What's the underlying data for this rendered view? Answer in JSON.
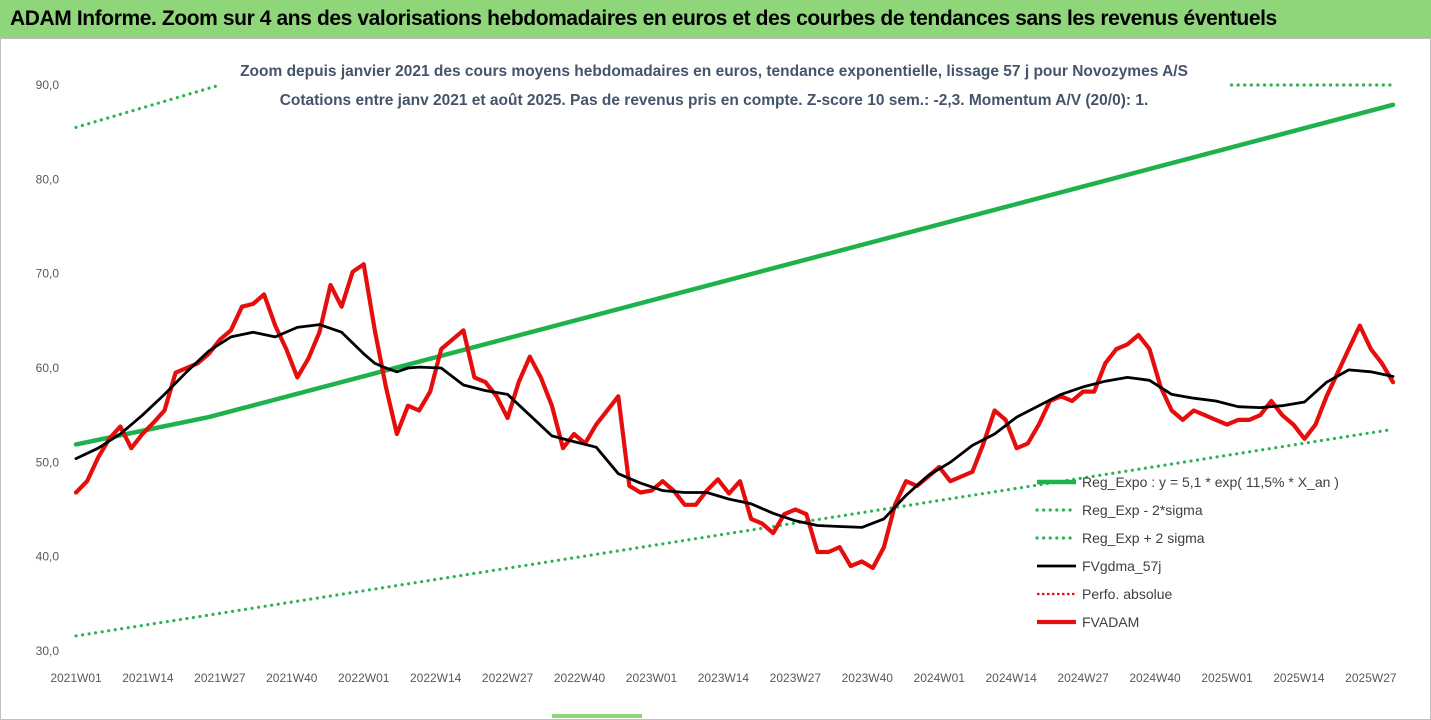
{
  "header": {
    "title": "ADAM Informe. Zoom sur 4 ans des valorisations hebdomadaires en euros et des courbes de tendances sans les revenus éventuels"
  },
  "colors": {
    "header_bg": "#8fd67b",
    "green": "#1fb14c",
    "green_dotted": "#2db356",
    "black": "#000000",
    "red": "#e60d0d",
    "title_text": "#44546a"
  },
  "chart_data": {
    "type": "line",
    "title_lines": [
      "Zoom depuis janvier 2021 des cours moyens hebdomadaires en euros, tendance exponentielle, lissage 57 j pour Novozymes A/S",
      "Cotations entre janv 2021 et août 2025. Pas de revenus pris en compte. Z-score 10 sem.: -2,3. Momentum A/V (20/0): 1."
    ],
    "ylim": [
      30,
      90
    ],
    "ytick_labels": [
      "30,0",
      "40,0",
      "50,0",
      "60,0",
      "70,0",
      "80,0",
      "90,0"
    ],
    "ytick_values": [
      30,
      40,
      50,
      60,
      70,
      80,
      90
    ],
    "xlim": [
      0,
      238
    ],
    "xtick_labels": [
      "2021W01",
      "2021W14",
      "2021W27",
      "2021W40",
      "2022W01",
      "2022W14",
      "2022W27",
      "2022W40",
      "2023W01",
      "2023W14",
      "2023W27",
      "2023W40",
      "2024W01",
      "2024W14",
      "2024W27",
      "2024W40",
      "2025W01",
      "2025W14",
      "2025W27"
    ],
    "xtick_values": [
      0,
      13,
      26,
      39,
      52,
      65,
      78,
      91,
      104,
      117,
      130,
      143,
      156,
      169,
      182,
      195,
      208,
      221,
      234
    ],
    "grid": "none",
    "legend_position": "right",
    "legend": [
      {
        "label": "Reg_Expo : y = 5,1 * exp( 11,5% *  X_an )",
        "style": "solid-green"
      },
      {
        "label": "Reg_Exp - 2*sigma",
        "style": "dotted-green"
      },
      {
        "label": "Reg_Exp + 2 sigma",
        "style": "dotted-green"
      },
      {
        "label": "FVgdma_57j",
        "style": "solid-black"
      },
      {
        "label": "Perfo. absolue",
        "style": "dotted-red"
      },
      {
        "label": "FVADAM",
        "style": "solid-red-thick"
      }
    ],
    "series": [
      {
        "name": "Reg_Expo : y = 5,1 * exp( 11,5% *  X_an )",
        "x": [
          0,
          24,
          238
        ],
        "values": [
          51.9,
          54.8,
          87.9
        ]
      },
      {
        "name": "Reg_Exp - 2*sigma",
        "x": [
          0,
          238
        ],
        "values": [
          31.6,
          53.5
        ]
      },
      {
        "name": "Reg_Exp + 2 sigma",
        "x": [
          0,
          26,
          26,
          238
        ],
        "values": [
          85.5,
          90,
          90,
          90
        ],
        "clip_x": [
          26,
          208
        ]
      },
      {
        "name": "FVgdma_57j",
        "x": [
          0,
          4,
          8,
          12,
          16,
          20,
          24,
          28,
          32,
          36,
          40,
          44,
          48,
          52,
          54,
          56,
          58,
          60,
          62,
          66,
          70,
          74,
          78,
          82,
          86,
          90,
          94,
          98,
          102,
          106,
          110,
          114,
          118,
          122,
          126,
          130,
          134,
          138,
          142,
          146,
          150,
          154,
          158,
          162,
          166,
          170,
          174,
          178,
          182,
          186,
          190,
          194,
          198,
          202,
          206,
          210,
          214,
          218,
          222,
          226,
          230,
          234,
          238
        ],
        "values": [
          50.4,
          51.5,
          53.0,
          55.0,
          57.2,
          59.6,
          61.8,
          63.3,
          63.8,
          63.3,
          64.3,
          64.6,
          63.8,
          61.5,
          60.5,
          60.0,
          59.6,
          60.0,
          60.1,
          60.0,
          58.2,
          57.6,
          57.2,
          55.0,
          52.8,
          52.2,
          51.6,
          48.8,
          47.8,
          47.0,
          46.8,
          46.8,
          46.1,
          45.6,
          44.6,
          43.8,
          43.3,
          43.2,
          43.1,
          44.0,
          46.5,
          48.6,
          50.0,
          51.8,
          53.0,
          54.8,
          56.0,
          57.2,
          58.0,
          58.6,
          59.0,
          58.7,
          57.2,
          56.8,
          56.5,
          55.9,
          55.8,
          56.0,
          56.4,
          58.5,
          59.8,
          59.6,
          59.1
        ]
      },
      {
        "name": "FVADAM",
        "x": [
          0,
          2,
          4,
          6,
          8,
          10,
          12,
          14,
          16,
          18,
          20,
          22,
          24,
          26,
          28,
          30,
          32,
          34,
          36,
          38,
          40,
          42,
          44,
          46,
          48,
          50,
          52,
          54,
          56,
          58,
          60,
          62,
          64,
          66,
          68,
          70,
          72,
          74,
          76,
          78,
          80,
          82,
          84,
          86,
          88,
          90,
          92,
          94,
          96,
          98,
          100,
          102,
          104,
          106,
          108,
          110,
          112,
          114,
          116,
          118,
          120,
          122,
          124,
          126,
          128,
          130,
          132,
          134,
          136,
          138,
          140,
          142,
          144,
          146,
          148,
          150,
          152,
          154,
          156,
          158,
          160,
          162,
          164,
          166,
          168,
          170,
          172,
          174,
          176,
          178,
          180,
          182,
          184,
          186,
          188,
          190,
          192,
          194,
          196,
          198,
          200,
          202,
          204,
          206,
          208,
          210,
          212,
          214,
          216,
          218,
          220,
          222,
          224,
          226,
          228,
          230,
          232,
          234,
          236,
          238
        ],
        "values": [
          46.8,
          48.0,
          50.5,
          52.5,
          53.8,
          51.5,
          53.0,
          54.2,
          55.5,
          59.5,
          60.0,
          60.5,
          61.5,
          63.0,
          64.0,
          66.5,
          66.8,
          67.8,
          64.5,
          62.0,
          59.0,
          61.0,
          63.8,
          68.8,
          66.5,
          70.2,
          71.0,
          64.0,
          58.0,
          53.0,
          56.0,
          55.5,
          57.5,
          62.0,
          63.0,
          64.0,
          59.0,
          58.5,
          57.0,
          54.7,
          58.5,
          61.2,
          59.0,
          56.0,
          51.5,
          53.0,
          52.0,
          54.0,
          55.5,
          57.0,
          47.5,
          46.8,
          47.0,
          48.0,
          47.0,
          45.5,
          45.5,
          47.0,
          48.2,
          46.7,
          48.0,
          44.0,
          43.5,
          42.5,
          44.5,
          45.0,
          44.5,
          40.5,
          40.5,
          41.0,
          39.0,
          39.5,
          38.8,
          41.0,
          45.5,
          48.0,
          47.5,
          48.5,
          49.5,
          48.0,
          48.5,
          49.0,
          52.0,
          55.5,
          54.5,
          51.5,
          52.0,
          54.0,
          56.5,
          57.0,
          56.5,
          57.5,
          57.5,
          60.5,
          62.0,
          62.5,
          63.5,
          62.0,
          58.0,
          55.5,
          54.5,
          55.5,
          55.0,
          54.5,
          54.0,
          54.5,
          54.5,
          55.0,
          56.5,
          55.0,
          54.0,
          52.5,
          54.0,
          57.0,
          59.5,
          62.0,
          64.5,
          62.0,
          60.5,
          58.5
        ]
      }
    ]
  }
}
